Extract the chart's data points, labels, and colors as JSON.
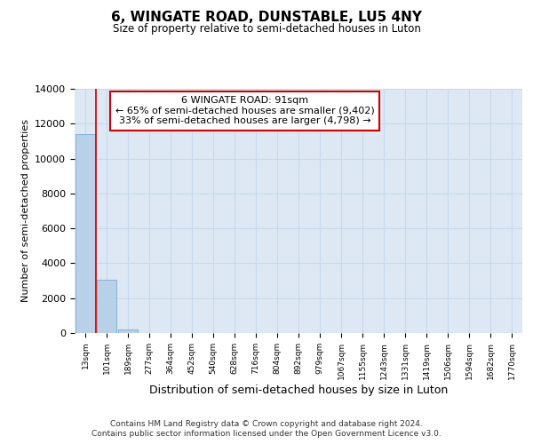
{
  "title": "6, WINGATE ROAD, DUNSTABLE, LU5 4NY",
  "subtitle": "Size of property relative to semi-detached houses in Luton",
  "xlabel": "Distribution of semi-detached houses by size in Luton",
  "ylabel": "Number of semi-detached properties",
  "categories": [
    "13sqm",
    "101sqm",
    "189sqm",
    "277sqm",
    "364sqm",
    "452sqm",
    "540sqm",
    "628sqm",
    "716sqm",
    "804sqm",
    "892sqm",
    "979sqm",
    "1067sqm",
    "1155sqm",
    "1243sqm",
    "1331sqm",
    "1419sqm",
    "1506sqm",
    "1594sqm",
    "1682sqm",
    "1770sqm"
  ],
  "bar_values": [
    11400,
    3050,
    200,
    20,
    5,
    2,
    1,
    1,
    0,
    0,
    0,
    0,
    0,
    0,
    0,
    0,
    0,
    0,
    0,
    0,
    0
  ],
  "bar_color": "#b8d0e8",
  "bar_edge_color": "#7aadd4",
  "grid_color": "#c8d8ec",
  "background_color": "#dde8f4",
  "red_line_color": "#cc0000",
  "annotation_line1": "6 WINGATE ROAD: 91sqm",
  "annotation_line2": "← 65% of semi-detached houses are smaller (9,402)",
  "annotation_line3": "33% of semi-detached houses are larger (4,798) →",
  "annotation_box_color": "#ffffff",
  "annotation_box_edge_color": "#cc0000",
  "ylim": [
    0,
    14000
  ],
  "footer_line1": "Contains HM Land Registry data © Crown copyright and database right 2024.",
  "footer_line2": "Contains public sector information licensed under the Open Government Licence v3.0."
}
